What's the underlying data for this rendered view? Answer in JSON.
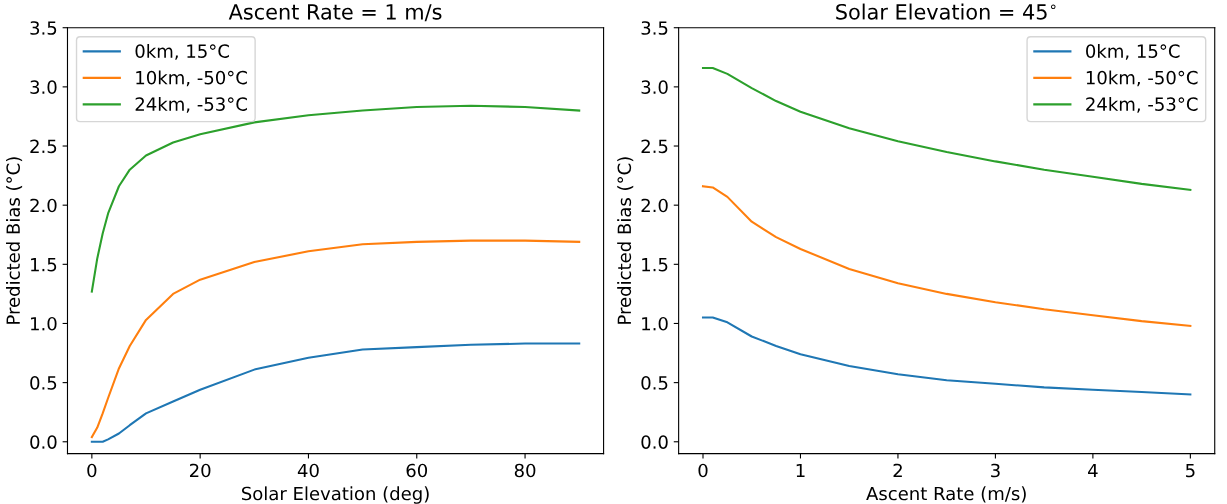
{
  "chart_data": [
    {
      "type": "line",
      "title": "Ascent Rate = 1 m/s",
      "xlabel": "Solar Elevation (deg)",
      "ylabel": "Predicted Bias (°C)",
      "xlim": [
        -4.5,
        94.5
      ],
      "ylim": [
        -0.1,
        3.5
      ],
      "xticks": [
        0,
        20,
        40,
        60,
        80
      ],
      "yticks": [
        {
          "value": 0,
          "label": "0.0"
        },
        {
          "value": 0.5,
          "label": "0.5"
        },
        {
          "value": 1,
          "label": "1.0"
        },
        {
          "value": 1.5,
          "label": "1.5"
        },
        {
          "value": 2,
          "label": "2.0"
        },
        {
          "value": 2.5,
          "label": "2.5"
        },
        {
          "value": 3,
          "label": "3.0"
        },
        {
          "value": 3.5,
          "label": "3.5"
        }
      ],
      "legend": "top left",
      "grid": false,
      "series": [
        {
          "name": "0km, 15°C",
          "color": "#1f77b4",
          "x": [
            0,
            2,
            3,
            5,
            7,
            10,
            15,
            20,
            30,
            40,
            50,
            60,
            70,
            80,
            90
          ],
          "values": [
            0,
            0,
            0.02,
            0.07,
            0.14,
            0.24,
            0.34,
            0.44,
            0.61,
            0.71,
            0.78,
            0.8,
            0.82,
            0.83,
            0.83
          ]
        },
        {
          "name": "10km, -50°C",
          "color": "#ff7f0e",
          "x": [
            0,
            1,
            2,
            3,
            5,
            7,
            10,
            15,
            20,
            30,
            40,
            50,
            60,
            70,
            80,
            90
          ],
          "values": [
            0.04,
            0.12,
            0.24,
            0.37,
            0.62,
            0.81,
            1.03,
            1.25,
            1.37,
            1.52,
            1.61,
            1.67,
            1.69,
            1.7,
            1.7,
            1.69
          ]
        },
        {
          "name": "24km, -53°C",
          "color": "#2ca02c",
          "x": [
            0,
            1,
            2,
            3,
            5,
            7,
            10,
            15,
            20,
            30,
            40,
            50,
            60,
            70,
            80,
            90
          ],
          "values": [
            1.27,
            1.55,
            1.76,
            1.93,
            2.16,
            2.3,
            2.42,
            2.53,
            2.6,
            2.7,
            2.76,
            2.8,
            2.83,
            2.84,
            2.83,
            2.8
          ]
        }
      ]
    },
    {
      "type": "line",
      "title": "Solar Elevation = 45$^{∘}$",
      "xlabel": "Ascent Rate (m/s)",
      "ylabel": "Predicted Bias (°C)",
      "xlim": [
        -0.25,
        5.25
      ],
      "ylim": [
        -0.1,
        3.5
      ],
      "xticks": [
        0,
        1,
        2,
        3,
        4,
        5
      ],
      "yticks": [
        {
          "value": 0,
          "label": "0.0"
        },
        {
          "value": 0.5,
          "label": "0.5"
        },
        {
          "value": 1,
          "label": "1.0"
        },
        {
          "value": 1.5,
          "label": "1.5"
        },
        {
          "value": 2,
          "label": "2.0"
        },
        {
          "value": 2.5,
          "label": "2.5"
        },
        {
          "value": 3,
          "label": "3.0"
        },
        {
          "value": 3.5,
          "label": "3.5"
        }
      ],
      "legend": "top right",
      "grid": false,
      "series": [
        {
          "name": "0km, 15°C",
          "color": "#1f77b4",
          "x": [
            0,
            0.1,
            0.25,
            0.5,
            0.75,
            1,
            1.5,
            2,
            2.5,
            3,
            3.5,
            4,
            4.5,
            5
          ],
          "values": [
            1.05,
            1.05,
            1.01,
            0.89,
            0.81,
            0.74,
            0.64,
            0.57,
            0.52,
            0.49,
            0.46,
            0.44,
            0.42,
            0.4
          ]
        },
        {
          "name": "10km, -50°C",
          "color": "#ff7f0e",
          "x": [
            0,
            0.1,
            0.25,
            0.5,
            0.75,
            1,
            1.5,
            2,
            2.5,
            3,
            3.5,
            4,
            4.5,
            5
          ],
          "values": [
            2.16,
            2.15,
            2.07,
            1.86,
            1.73,
            1.63,
            1.46,
            1.34,
            1.25,
            1.18,
            1.12,
            1.07,
            1.02,
            0.98
          ]
        },
        {
          "name": "24km, -53°C",
          "color": "#2ca02c",
          "x": [
            0,
            0.1,
            0.25,
            0.5,
            0.75,
            1,
            1.5,
            2,
            2.5,
            3,
            3.5,
            4,
            4.5,
            5
          ],
          "values": [
            3.16,
            3.16,
            3.11,
            2.99,
            2.88,
            2.79,
            2.65,
            2.54,
            2.45,
            2.37,
            2.3,
            2.24,
            2.18,
            2.13
          ]
        }
      ]
    }
  ]
}
